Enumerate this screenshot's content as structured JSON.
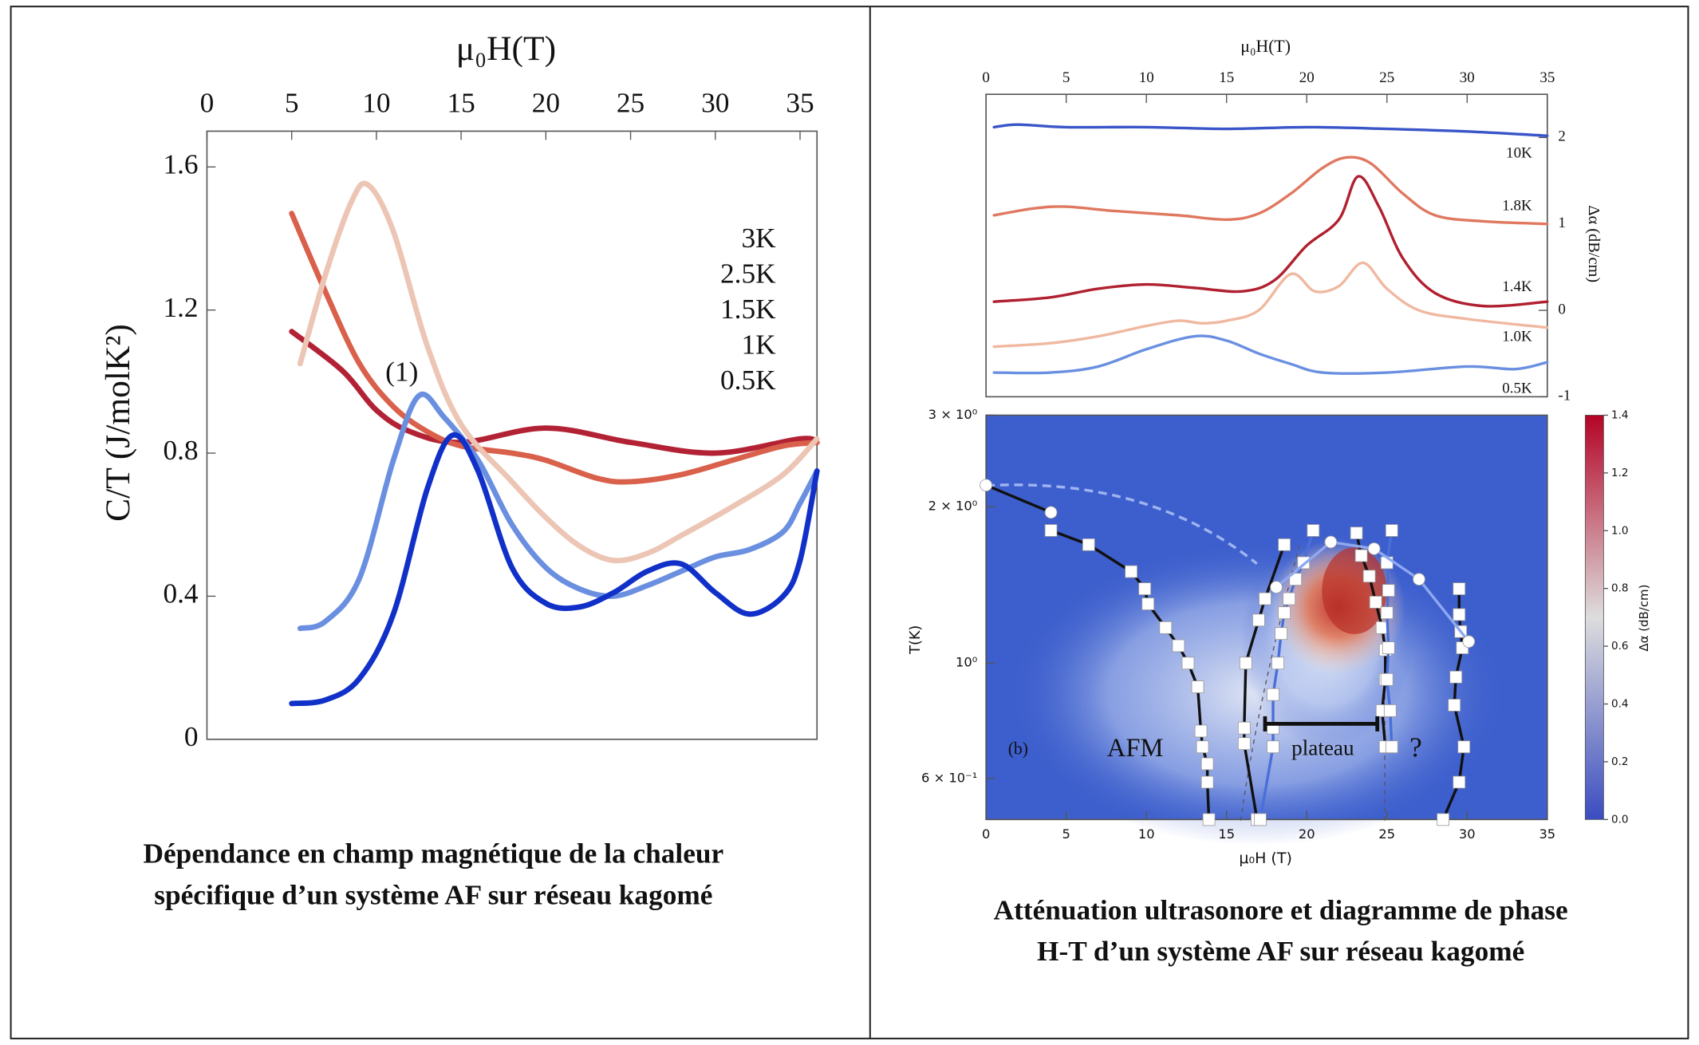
{
  "chart_data": [
    {
      "type": "line",
      "xlabel": "μ₀H(T)",
      "ylabel": "C/T (J/molK²)",
      "xlim": [
        0,
        36
      ],
      "xticks": [
        0,
        5,
        10,
        15,
        20,
        25,
        30,
        35
      ],
      "ylim": [
        0,
        1.7
      ],
      "yticks": [
        0,
        0.4,
        0.8,
        1.2,
        1.6
      ],
      "annotations": [
        {
          "text": "(1)",
          "x": 11.5,
          "y": 1.02
        }
      ],
      "series": [
        {
          "name": "3K",
          "color": "#b22234",
          "x": [
            5,
            8,
            10,
            12,
            15,
            20,
            25,
            30,
            35,
            36
          ],
          "values": [
            1.14,
            1.03,
            0.92,
            0.86,
            0.83,
            0.87,
            0.83,
            0.8,
            0.84,
            0.83
          ]
        },
        {
          "name": "2.5K",
          "color": "#d9604a",
          "x": [
            5,
            7,
            9,
            11,
            13,
            15,
            18,
            20,
            23,
            25,
            28,
            31,
            34,
            36
          ],
          "values": [
            1.47,
            1.25,
            1.05,
            0.93,
            0.86,
            0.82,
            0.8,
            0.78,
            0.73,
            0.72,
            0.74,
            0.78,
            0.82,
            0.83
          ]
        },
        {
          "name": "1.5K",
          "color": "#ecc5b5",
          "x": [
            5.5,
            7,
            8.5,
            9.5,
            11,
            13,
            15,
            18,
            20,
            22,
            24,
            26,
            28,
            31,
            34,
            36
          ],
          "values": [
            1.05,
            1.3,
            1.5,
            1.55,
            1.42,
            1.1,
            0.88,
            0.72,
            0.62,
            0.54,
            0.5,
            0.52,
            0.57,
            0.65,
            0.74,
            0.84
          ]
        },
        {
          "name": "1K",
          "color": "#6a8fe0",
          "x": [
            5.5,
            7,
            9,
            11,
            12.5,
            14,
            16,
            18,
            20,
            22,
            24,
            26,
            28,
            30,
            32,
            34,
            35,
            36
          ],
          "values": [
            0.31,
            0.33,
            0.45,
            0.78,
            0.96,
            0.9,
            0.78,
            0.6,
            0.48,
            0.42,
            0.4,
            0.43,
            0.47,
            0.51,
            0.53,
            0.58,
            0.66,
            0.75
          ]
        },
        {
          "name": "0.5K",
          "color": "#1030c8",
          "x": [
            5,
            7,
            9,
            11,
            13,
            14.5,
            16,
            18,
            20,
            22,
            24,
            26,
            28,
            30,
            32,
            34,
            35,
            36
          ],
          "values": [
            0.1,
            0.11,
            0.17,
            0.35,
            0.7,
            0.85,
            0.75,
            0.48,
            0.38,
            0.37,
            0.41,
            0.47,
            0.49,
            0.41,
            0.35,
            0.4,
            0.5,
            0.75
          ]
        }
      ]
    },
    {
      "type": "line",
      "xlabel": "μ₀H(T)",
      "ylabel": "Δα (dB/cm)",
      "xlim": [
        0,
        35
      ],
      "xticks": [
        0,
        5,
        10,
        15,
        20,
        25,
        30,
        35
      ],
      "ylim": [
        -1,
        2.5
      ],
      "yticks": [
        -1,
        0,
        1,
        2
      ],
      "series": [
        {
          "name": "10K",
          "color": "#3a55c8",
          "x": [
            0.5,
            2,
            5,
            10,
            15,
            20,
            25,
            30,
            35
          ],
          "values": [
            2.12,
            2.15,
            2.12,
            2.12,
            2.1,
            2.12,
            2.1,
            2.07,
            2.02
          ]
        },
        {
          "name": "1.8K",
          "color": "#e07860",
          "x": [
            0.5,
            3,
            5,
            8,
            12,
            15,
            17,
            19,
            21,
            22.5,
            24,
            26,
            28,
            31,
            35
          ],
          "values": [
            1.1,
            1.18,
            1.2,
            1.15,
            1.1,
            1.05,
            1.12,
            1.35,
            1.65,
            1.77,
            1.7,
            1.35,
            1.1,
            1.03,
            1.0
          ]
        },
        {
          "name": "1.4K",
          "color": "#b02030",
          "x": [
            0.5,
            4,
            7,
            10,
            13,
            16,
            18,
            20,
            22,
            23.2,
            24.5,
            26,
            28,
            31,
            35
          ],
          "values": [
            0.1,
            0.15,
            0.25,
            0.3,
            0.26,
            0.22,
            0.35,
            0.75,
            1.05,
            1.55,
            1.2,
            0.6,
            0.2,
            0.05,
            0.1
          ]
        },
        {
          "name": "1.0K",
          "color": "#f0b8a0",
          "x": [
            0.5,
            4,
            7,
            10,
            12,
            13.5,
            15,
            17,
            19,
            20.5,
            22,
            23.5,
            25,
            27,
            30,
            35
          ],
          "values": [
            -0.42,
            -0.38,
            -0.3,
            -0.18,
            -0.12,
            -0.15,
            -0.12,
            0.0,
            0.42,
            0.22,
            0.28,
            0.55,
            0.25,
            0.0,
            -0.1,
            -0.2
          ]
        },
        {
          "name": "0.5K",
          "color": "#6a8fe0",
          "x": [
            0.5,
            4,
            7,
            10,
            13,
            15,
            17,
            19,
            21,
            25,
            30,
            33,
            35
          ],
          "values": [
            -0.72,
            -0.72,
            -0.65,
            -0.45,
            -0.3,
            -0.35,
            -0.5,
            -0.62,
            -0.72,
            -0.72,
            -0.65,
            -0.68,
            -0.6
          ]
        }
      ]
    },
    {
      "type": "scatter",
      "xlabel": "μ₀H (T)",
      "ylabel": "T(K)",
      "ylog": true,
      "xlim": [
        0,
        35
      ],
      "xticks": [
        0,
        5,
        10,
        15,
        20,
        25,
        30,
        35
      ],
      "ylim": [
        0.5,
        3
      ],
      "yticks": [
        {
          "value": 3,
          "label": "3 × 10⁰"
        },
        {
          "value": 2,
          "label": "2 × 10⁰"
        },
        {
          "value": 1,
          "label": "10⁰"
        },
        {
          "value": 0.6,
          "label": "6 × 10⁻¹"
        }
      ],
      "colorbar": {
        "label": "Δα (dB/cm)",
        "lim": [
          0,
          1.4
        ],
        "colors": [
          "#3b4cc0",
          "#dddddd",
          "#b40426"
        ],
        "ticks": [
          {
            "value": 0,
            "label": "0.0"
          },
          0.2,
          0.4,
          0.6,
          0.8,
          {
            "value": 1,
            "label": "1.0"
          },
          1.2,
          1.4
        ]
      },
      "annotations": [
        {
          "text": "(b)",
          "x": 2.0,
          "y": 0.68
        },
        {
          "text": "AFM",
          "x": 9.3,
          "y": 0.68
        },
        {
          "text": "plateau",
          "x": 21.0,
          "y": 0.68
        },
        {
          "text": "?",
          "x": 26.8,
          "y": 0.68
        }
      ],
      "plateau": {
        "x": [
          17.4,
          24.4
        ],
        "y": 0.764
      },
      "series": [
        {
          "color": "#111111",
          "marker": "circle",
          "x": [
            0,
            4.05
          ],
          "values": [
            2.2,
            1.95
          ]
        },
        {
          "color": "#111111",
          "marker": "square",
          "x": [
            4.05,
            6.4,
            9.05,
            9.9,
            10.1,
            11.2,
            12.0,
            12.6,
            13.2,
            13.4,
            13.5,
            13.8,
            13.8,
            13.9
          ],
          "values": [
            1.8,
            1.69,
            1.5,
            1.39,
            1.3,
            1.17,
            1.08,
            1.0,
            0.9,
            0.74,
            0.69,
            0.64,
            0.59,
            0.5
          ]
        },
        {
          "color": "#111111",
          "marker": "square",
          "x": [
            16.9,
            16.1,
            16.1,
            16.2,
            17.0,
            17.4,
            18.6
          ],
          "values": [
            0.5,
            0.7,
            0.75,
            1.0,
            1.21,
            1.33,
            1.69
          ]
        },
        {
          "color": "#4a6fd8",
          "marker": "square",
          "x": [
            17.1,
            17.9,
            17.9,
            17.9,
            18.2,
            18.4,
            18.6,
            18.9,
            19.3,
            19.8,
            20.4
          ],
          "values": [
            0.5,
            0.69,
            0.75,
            0.87,
            1.0,
            1.14,
            1.25,
            1.33,
            1.45,
            1.56,
            1.8
          ]
        },
        {
          "color": "#111111",
          "marker": "square",
          "x": [
            24.9,
            24.7,
            24.9,
            24.9,
            24.7,
            24.3,
            23.9,
            23.4,
            23.1
          ],
          "values": [
            0.69,
            0.81,
            0.93,
            1.06,
            1.17,
            1.31,
            1.47,
            1.61,
            1.78
          ]
        },
        {
          "color": "#4a6fd8",
          "marker": "square",
          "x": [
            25.3,
            25.0,
            25.1,
            25.0,
            25.1,
            25.0,
            25.2,
            25.3
          ],
          "values": [
            1.8,
            1.56,
            1.38,
            1.25,
            1.07,
            0.93,
            0.81,
            0.69
          ]
        },
        {
          "color": "#111111",
          "marker": "square",
          "x": [
            28.5,
            29.5,
            29.8,
            29.2,
            29.3,
            29.7,
            29.6,
            29.5,
            29.5
          ],
          "values": [
            0.5,
            0.59,
            0.69,
            0.83,
            0.94,
            1.07,
            1.15,
            1.24,
            1.39
          ]
        },
        {
          "color": "#8fa8f0",
          "marker": "circle",
          "x": [
            18.1,
            21.5,
            24.2,
            27.0,
            30.1
          ],
          "values": [
            1.4,
            1.71,
            1.66,
            1.45,
            1.1
          ]
        }
      ]
    }
  ],
  "captions": [
    [
      "Dépendance en champ magnétique de la chaleur",
      "spécifique d’un système AF sur réseau kagomé"
    ],
    [
      "Atténuation ultrasonore et diagramme de phase",
      "H-T d’un système AF sur réseau kagomé"
    ]
  ]
}
